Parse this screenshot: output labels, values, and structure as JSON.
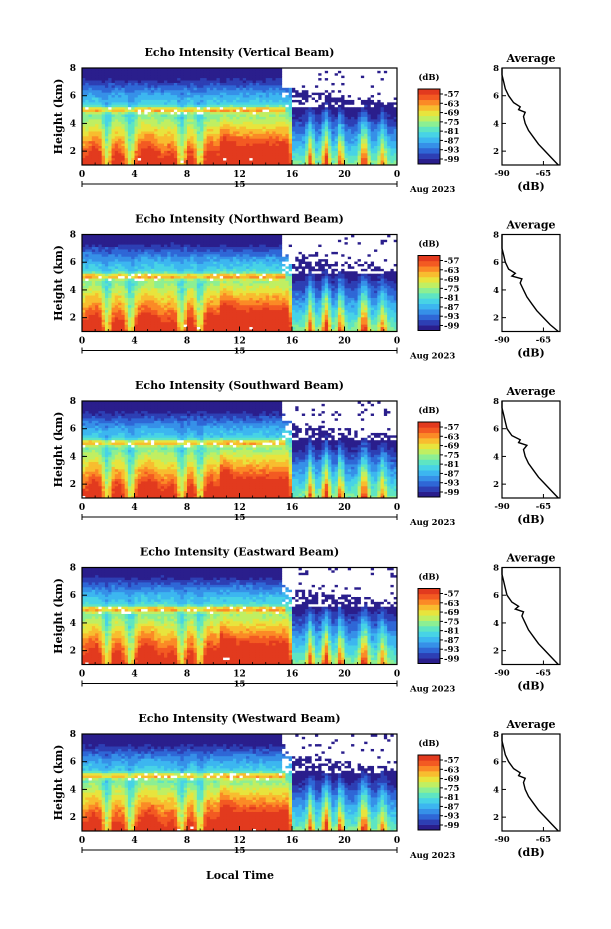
{
  "figure": {
    "xlabel": "Local Time",
    "date_label": "Aug 2023",
    "day_label": "15",
    "unit_label": "(dB)",
    "avg_title": "Average",
    "avg_xlabel": "(dB)"
  },
  "colors": {
    "colormap": [
      "#2a1e8c",
      "#2d3fb4",
      "#2f67d6",
      "#3690e8",
      "#3cb6f0",
      "#47d3e6",
      "#5ee5c3",
      "#8cef93",
      "#c0ef62",
      "#e8e43d",
      "#f8bd2f",
      "#fb8a26",
      "#f35a22",
      "#e23a1e"
    ],
    "missing": "#ffffff",
    "line": "#000000"
  },
  "colorbar_ticks": [
    "-57",
    "-63",
    "-69",
    "-75",
    "-81",
    "-87",
    "-93",
    "-99"
  ],
  "chart_data": [
    {
      "type": "heatmap",
      "title": "Echo Intensity (Vertical Beam)",
      "ylabel": "Height (km)",
      "xlim": [
        0,
        24
      ],
      "xticks": [
        "0",
        "4",
        "8",
        "12",
        "16",
        "20",
        "0"
      ],
      "ylim": [
        1,
        8
      ],
      "yticks": [
        "2",
        "4",
        "6",
        "8"
      ],
      "colorbar": {
        "label": "(dB)",
        "range": [
          -99,
          -57
        ],
        "ticks": [
          -57,
          -63,
          -69,
          -75,
          -81,
          -87,
          -93,
          -99
        ]
      },
      "average_profile": {
        "title": "Average",
        "xlabel": "(dB)",
        "xticks": [
          "-90",
          "-65"
        ],
        "xlim": [
          -90,
          -55
        ],
        "heights": [
          1.0,
          1.5,
          2.0,
          2.5,
          3.0,
          3.5,
          4.0,
          4.5,
          4.8,
          5.0,
          5.2,
          5.5,
          6.0,
          6.5,
          7.0,
          7.5,
          8.0
        ],
        "values": [
          -56,
          -60,
          -64,
          -68,
          -71,
          -74,
          -76,
          -77,
          -76,
          -80,
          -79,
          -83,
          -86,
          -88,
          -89,
          -90,
          -91
        ]
      }
    },
    {
      "type": "heatmap",
      "title": "Echo Intensity (Northward Beam)",
      "ylabel": "Height (km)",
      "xlim": [
        0,
        24
      ],
      "xticks": [
        "0",
        "4",
        "8",
        "12",
        "16",
        "20",
        "0"
      ],
      "ylim": [
        1,
        8
      ],
      "yticks": [
        "2",
        "4",
        "6",
        "8"
      ],
      "colorbar": {
        "label": "(dB)",
        "range": [
          -99,
          -57
        ],
        "ticks": [
          -57,
          -63,
          -69,
          -75,
          -81,
          -87,
          -93,
          -99
        ]
      },
      "average_profile": {
        "title": "Average",
        "xlabel": "(dB)",
        "xticks": [
          "-90",
          "-65"
        ],
        "xlim": [
          -90,
          -55
        ],
        "heights": [
          1.0,
          1.5,
          2.0,
          2.5,
          3.0,
          3.5,
          4.0,
          4.5,
          4.8,
          5.0,
          5.2,
          5.5,
          6.0,
          6.5,
          7.0,
          7.5,
          8.0
        ],
        "values": [
          -56,
          -61,
          -65,
          -69,
          -72,
          -75,
          -77,
          -79,
          -78,
          -84,
          -82,
          -86,
          -88,
          -89,
          -90,
          -91,
          -91
        ]
      }
    },
    {
      "type": "heatmap",
      "title": "Echo Intensity (Southward Beam)",
      "ylabel": "Height (km)",
      "xlim": [
        0,
        24
      ],
      "xticks": [
        "0",
        "4",
        "8",
        "12",
        "16",
        "20",
        "0"
      ],
      "ylim": [
        1,
        8
      ],
      "yticks": [
        "2",
        "4",
        "6",
        "8"
      ],
      "colorbar": {
        "label": "(dB)",
        "range": [
          -99,
          -57
        ],
        "ticks": [
          -57,
          -63,
          -69,
          -75,
          -81,
          -87,
          -93,
          -99
        ]
      },
      "average_profile": {
        "title": "Average",
        "xlabel": "(dB)",
        "xticks": [
          "-90",
          "-65"
        ],
        "xlim": [
          -90,
          -55
        ],
        "heights": [
          1.0,
          1.5,
          2.0,
          2.5,
          3.0,
          3.5,
          4.0,
          4.5,
          4.8,
          5.0,
          5.2,
          5.5,
          6.0,
          6.5,
          7.0,
          7.5,
          8.0
        ],
        "values": [
          -56,
          -60,
          -64,
          -68,
          -71,
          -74,
          -76,
          -77,
          -75,
          -80,
          -79,
          -84,
          -87,
          -88,
          -89,
          -90,
          -91
        ]
      }
    },
    {
      "type": "heatmap",
      "title": "Echo Intensity (Eastward Beam)",
      "ylabel": "Height (km)",
      "xlim": [
        0,
        24
      ],
      "xticks": [
        "0",
        "4",
        "8",
        "12",
        "16",
        "20",
        "0"
      ],
      "ylim": [
        1,
        8
      ],
      "yticks": [
        "2",
        "4",
        "6",
        "8"
      ],
      "colorbar": {
        "label": "(dB)",
        "range": [
          -99,
          -57
        ],
        "ticks": [
          -57,
          -63,
          -69,
          -75,
          -81,
          -87,
          -93,
          -99
        ]
      },
      "average_profile": {
        "title": "Average",
        "xlabel": "(dB)",
        "xticks": [
          "-90",
          "-65"
        ],
        "xlim": [
          -90,
          -55
        ],
        "heights": [
          1.0,
          1.5,
          2.0,
          2.5,
          3.0,
          3.5,
          4.0,
          4.5,
          4.8,
          5.0,
          5.2,
          5.5,
          6.0,
          6.5,
          7.0,
          7.5,
          8.0
        ],
        "values": [
          -56,
          -60,
          -64,
          -68,
          -71,
          -74,
          -76,
          -78,
          -77,
          -82,
          -80,
          -84,
          -87,
          -88,
          -89,
          -90,
          -91
        ]
      }
    },
    {
      "type": "heatmap",
      "title": "Echo Intensity (Westward Beam)",
      "ylabel": "Height (km)",
      "xlim": [
        0,
        24
      ],
      "xticks": [
        "0",
        "4",
        "8",
        "12",
        "16",
        "20",
        "0"
      ],
      "ylim": [
        1,
        8
      ],
      "yticks": [
        "2",
        "4",
        "6",
        "8"
      ],
      "colorbar": {
        "label": "(dB)",
        "range": [
          -99,
          -57
        ],
        "ticks": [
          -57,
          -63,
          -69,
          -75,
          -81,
          -87,
          -93,
          -99
        ]
      },
      "average_profile": {
        "title": "Average",
        "xlabel": "(dB)",
        "xticks": [
          "-90",
          "-65"
        ],
        "xlim": [
          -90,
          -55
        ],
        "heights": [
          1.0,
          1.5,
          2.0,
          2.5,
          3.0,
          3.5,
          4.0,
          4.5,
          4.8,
          5.0,
          5.2,
          5.5,
          6.0,
          6.5,
          7.0,
          7.5,
          8.0
        ],
        "values": [
          -56,
          -60,
          -64,
          -68,
          -71,
          -74,
          -76,
          -77,
          -76,
          -80,
          -79,
          -83,
          -86,
          -88,
          -89,
          -90,
          -91
        ]
      }
    }
  ]
}
